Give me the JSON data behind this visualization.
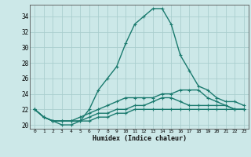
{
  "xlabel": "Humidex (Indice chaleur)",
  "x": [
    0,
    1,
    2,
    3,
    4,
    5,
    6,
    7,
    8,
    9,
    10,
    11,
    12,
    13,
    14,
    15,
    16,
    17,
    18,
    19,
    20,
    21,
    22,
    23
  ],
  "line1": [
    22,
    21,
    20.5,
    20,
    20,
    20.5,
    22,
    24.5,
    26,
    27.5,
    30.5,
    33,
    34,
    35,
    35,
    33,
    29,
    27,
    25,
    24.5,
    23.5,
    23,
    23,
    22.5
  ],
  "line2": [
    22,
    21,
    20.5,
    20.5,
    20.5,
    21,
    21.5,
    22,
    22.5,
    23,
    23.5,
    23.5,
    23.5,
    23.5,
    24,
    24,
    24.5,
    24.5,
    24.5,
    23.5,
    23,
    22.5,
    22,
    22
  ],
  "line3": [
    22,
    21,
    20.5,
    20.5,
    20.5,
    20.5,
    21,
    21.5,
    21.5,
    22,
    22,
    22.5,
    22.5,
    23,
    23.5,
    23.5,
    23,
    22.5,
    22.5,
    22.5,
    22.5,
    22.5,
    22,
    22
  ],
  "line4": [
    22,
    21,
    20.5,
    20.5,
    20.5,
    20.5,
    20.5,
    21,
    21,
    21.5,
    21.5,
    22,
    22,
    22,
    22,
    22,
    22,
    22,
    22,
    22,
    22,
    22,
    22,
    22
  ],
  "color": "#1a7a6e",
  "bg_color": "#cce8e8",
  "grid_color": "#aacece",
  "ylim": [
    19.5,
    35.5
  ],
  "xlim": [
    -0.5,
    23.5
  ],
  "yticks": [
    20,
    22,
    24,
    26,
    28,
    30,
    32,
    34
  ],
  "xticks": [
    0,
    1,
    2,
    3,
    4,
    5,
    6,
    7,
    8,
    9,
    10,
    11,
    12,
    13,
    14,
    15,
    16,
    17,
    18,
    19,
    20,
    21,
    22,
    23
  ],
  "marker": "+"
}
